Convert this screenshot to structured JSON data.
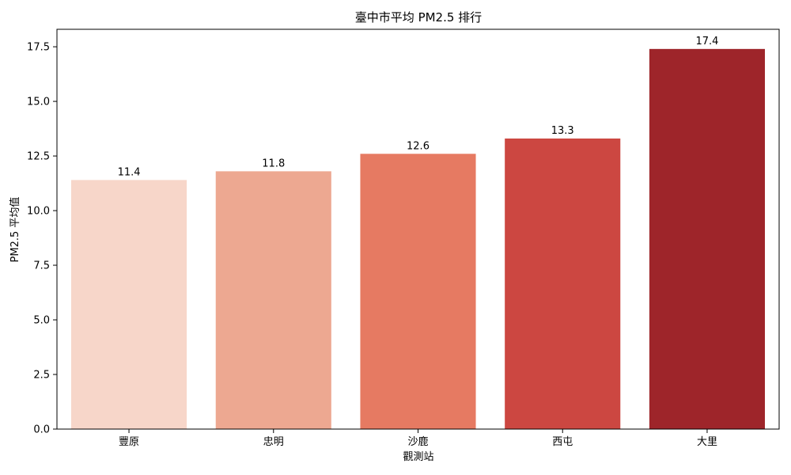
{
  "chart_data": {
    "type": "bar",
    "title": "臺中市平均 PM2.5 排行",
    "xlabel": "觀測站",
    "ylabel": "PM2.5 平均值",
    "categories": [
      "豐原",
      "忠明",
      "沙鹿",
      "西屯",
      "大里"
    ],
    "values": [
      11.4,
      11.8,
      12.6,
      13.3,
      17.4
    ],
    "data_labels": [
      "11.4",
      "11.8",
      "12.6",
      "13.3",
      "17.4"
    ],
    "colors": [
      "#f7d6c9",
      "#eda891",
      "#e67a62",
      "#cc4741",
      "#9e252a"
    ],
    "ylim": [
      0,
      18.3
    ],
    "yticks": [
      0.0,
      2.5,
      5.0,
      7.5,
      10.0,
      12.5,
      15.0,
      17.5
    ],
    "ytick_labels": [
      "0.0",
      "2.5",
      "5.0",
      "7.5",
      "10.0",
      "12.5",
      "15.0",
      "17.5"
    ],
    "grid": false,
    "legend": "none"
  }
}
